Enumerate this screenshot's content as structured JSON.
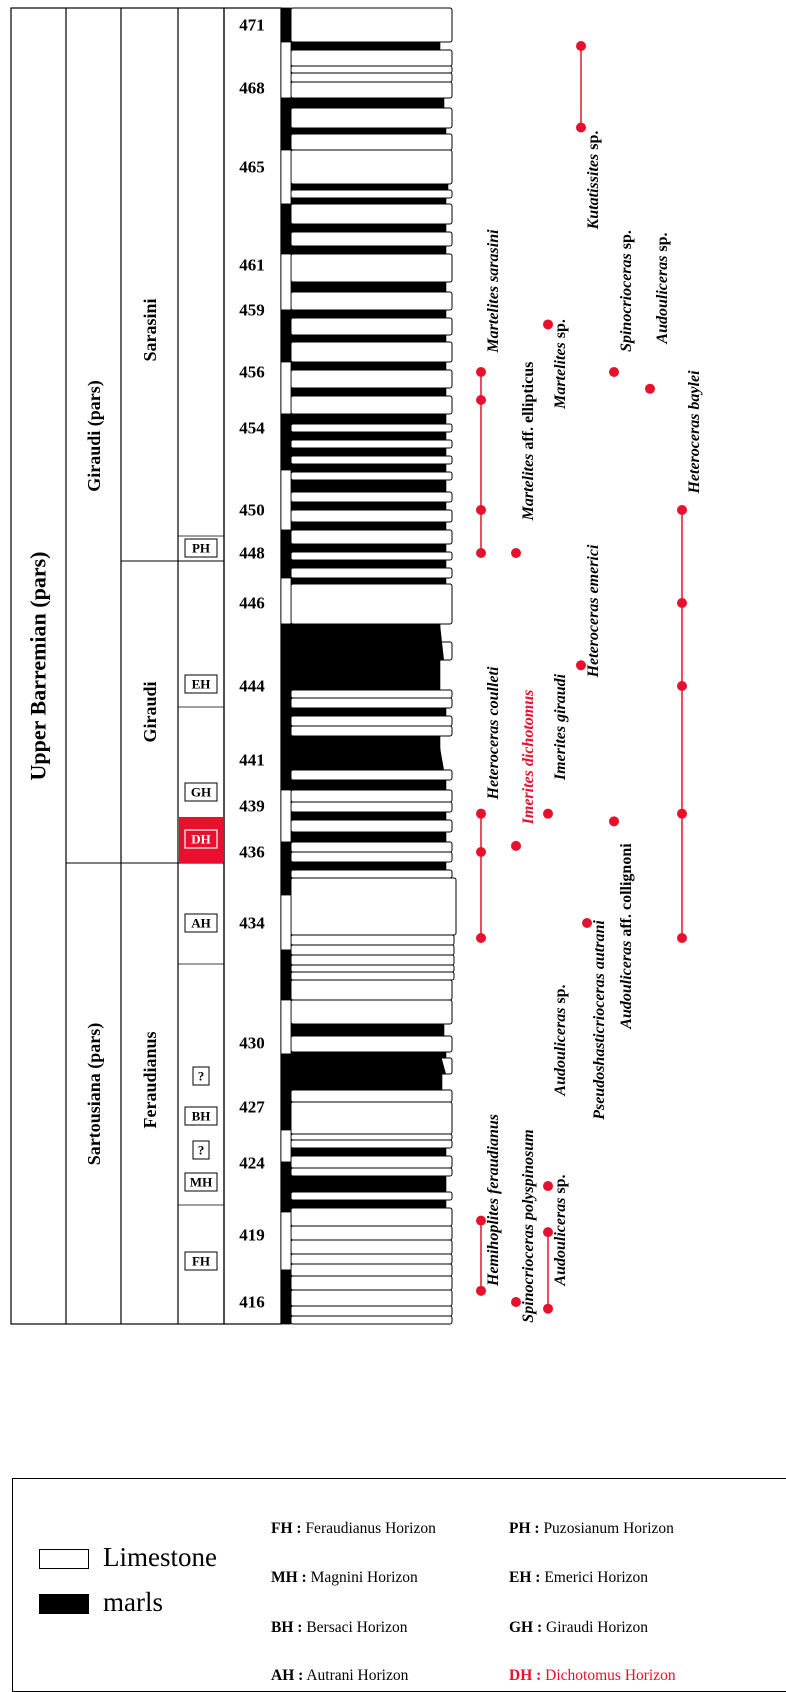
{
  "columns": {
    "stage": "Upper Barremian (pars)",
    "zones": [
      {
        "name": "Sartousiana (pars)",
        "from": 416,
        "to": 436
      },
      {
        "name": "Giraudi (pars)",
        "from": 436,
        "to": 471
      }
    ],
    "subzones": [
      {
        "name": "Feraudianus",
        "from": 416,
        "to": 436
      },
      {
        "name": "Giraudi",
        "from": 436,
        "to": 448
      },
      {
        "name": "Sarasini",
        "from": 448,
        "to": 471
      }
    ],
    "horizons": [
      {
        "code": "FH",
        "bed": 419.5,
        "highlight": false
      },
      {
        "code": "MH",
        "bed": 423.5,
        "highlight": false
      },
      {
        "code": "?",
        "bed": 425.4,
        "highlight": false
      },
      {
        "code": "BH",
        "bed": 427.2,
        "highlight": false
      },
      {
        "code": "?",
        "bed": 428.8,
        "highlight": false
      },
      {
        "code": "AH",
        "bed": 434,
        "highlight": false
      },
      {
        "code": "DH",
        "bed": 437,
        "highlight": true
      },
      {
        "code": "GH",
        "bed": 440,
        "highlight": false
      },
      {
        "code": "EH",
        "bed": 444.7,
        "highlight": false
      },
      {
        "code": "PH",
        "bed": 448.3,
        "highlight": false
      }
    ]
  },
  "beds": {
    "labels": [
      {
        "text": "416",
        "bed": 416
      },
      {
        "text": "419",
        "bed": 419
      },
      {
        "text": "424",
        "bed": 424
      },
      {
        "text": "427",
        "bed": 427
      },
      {
        "text": "430",
        "bed": 430
      },
      {
        "text": "434",
        "bed": 434
      },
      {
        "text": "436",
        "bed": 436
      },
      {
        "text": "439",
        "bed": 439
      },
      {
        "text": "441",
        "bed": 441
      },
      {
        "text": "444",
        "bed": 444
      },
      {
        "text": "446",
        "bed": 446
      },
      {
        "text": "448",
        "bed": 448
      },
      {
        "text": "450",
        "bed": 450
      },
      {
        "text": "454",
        "bed": 454
      },
      {
        "text": "456",
        "bed": 456
      },
      {
        "text": "459",
        "bed": 459
      },
      {
        "text": "461",
        "bed": 461
      },
      {
        "text": "465",
        "bed": 465
      },
      {
        "text": "468",
        "bed": 468
      },
      {
        "text": "471",
        "bed": 471
      }
    ]
  },
  "taxa": [
    {
      "name": "Hemihoplites feraudianus",
      "italic": "Hemihoplites feraudianus",
      "rest": "",
      "red": false,
      "range": [
        416.5,
        420
      ]
    },
    {
      "name": "Spinocrioceras polyspinosum",
      "italic": "Spinocrioceras polyspinosum",
      "rest": "",
      "red": false,
      "range": [
        416,
        416
      ]
    },
    {
      "name": "Audouliceras sp.",
      "italic": "Audouliceras",
      "rest": " sp.",
      "red": false,
      "range": [
        415.7,
        419.2
      ]
    },
    {
      "name": "Audouliceras sp.",
      "italic": "Audouliceras",
      "rest": " sp.",
      "red": false,
      "range": [
        422.4,
        422.4
      ]
    },
    {
      "name": "Pseudoshasticrioceras autrani",
      "italic": "Pseudoshasticrioceras autrani",
      "rest": "",
      "red": false,
      "range": [
        434,
        434
      ]
    },
    {
      "name": "Audouliceras aff. collignoni",
      "italic": "Audouliceras",
      "rest": " aff. collignoni",
      "red": false,
      "range": [
        438,
        438
      ]
    },
    {
      "name": "Heteroceras coulleti",
      "italic": "Heteroceras coulleti",
      "rest": "",
      "red": false,
      "range": [
        433.5,
        438.5
      ]
    },
    {
      "name": "Imerites dichotomus",
      "italic": "Imerites dichotomus",
      "rest": "",
      "red": true,
      "range": [
        436.4,
        436.4
      ]
    },
    {
      "name": "Imerites giraudi",
      "italic": "Imerites giraudi",
      "rest": "",
      "red": false,
      "range": [
        438.5,
        438.5
      ]
    },
    {
      "name": "Heteroceras emerici",
      "italic": "Heteroceras emerici",
      "rest": "",
      "red": false,
      "range": [
        444.5,
        444.5
      ]
    },
    {
      "name": "Heteroceras baylei",
      "italic": "Heteroceras baylei",
      "rest": "",
      "red": false,
      "range": [
        433.5,
        450
      ]
    },
    {
      "name": "Martelites sarasini",
      "italic": "Martelites sarasini",
      "rest": "",
      "red": false,
      "range": [
        448,
        456
      ]
    },
    {
      "name": "Martelites aff. ellipticus",
      "italic": "Martelites",
      "rest": " aff. ellipticus",
      "red": false,
      "range": [
        448,
        448
      ]
    },
    {
      "name": "Martelites sp.",
      "italic": "Martelites",
      "rest": " sp.",
      "red": false,
      "range": [
        458.3,
        458.3
      ]
    },
    {
      "name": "Spinocrioceras sp.",
      "italic": "Spinocrioceras",
      "rest": " sp.",
      "red": false,
      "range": [
        456,
        456
      ]
    },
    {
      "name": "Audouliceras sp.",
      "italic": "Audouliceras",
      "rest": " sp.",
      "red": false,
      "range": [
        455.4,
        455.4
      ]
    },
    {
      "name": "Kutatissites sp.",
      "italic": "Kutatissites",
      "rest": " sp.",
      "red": false,
      "range": [
        466.5,
        470
      ]
    }
  ],
  "legend": {
    "limestone": "Limestone",
    "marls": "marls",
    "horizons": [
      {
        "code": "FH :",
        "name": " Feraudianus Horizon",
        "red": false
      },
      {
        "code": "PH :",
        "name": " Puzosianum Horizon",
        "red": false
      },
      {
        "code": "MH :",
        "name": " Magnini Horizon",
        "red": false
      },
      {
        "code": "EH :",
        "name": " Emerici Horizon",
        "red": false
      },
      {
        "code": "BH :",
        "name": "  Bersaci Horizon",
        "red": false
      },
      {
        "code": "GH :",
        "name": " Giraudi Horizon",
        "red": false
      },
      {
        "code": "AH :",
        "name": " Autrani Horizon",
        "red": false
      },
      {
        "code": "DH :",
        "name": " Dichotomus Horizon",
        "red": true
      }
    ]
  },
  "colors": {
    "accent_red": "#e8112d",
    "marl": "#000000",
    "limestone": "#ffffff"
  }
}
